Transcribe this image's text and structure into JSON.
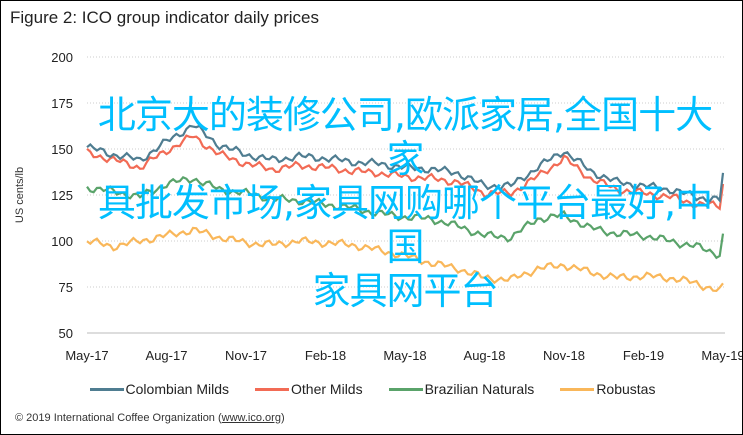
{
  "chart_data": {
    "type": "line",
    "title": "Figure 2: ICO group indicator daily prices",
    "xlabel": "",
    "ylabel": "US cents/lb",
    "ylim": [
      50,
      200
    ],
    "yticks": [
      "200",
      "175",
      "150",
      "125",
      "100",
      "75",
      "50"
    ],
    "ytick_values": [
      200,
      175,
      150,
      125,
      100,
      75,
      50
    ],
    "xtick_labels": [
      "May-17",
      "Aug-17",
      "Nov-17",
      "Feb-18",
      "May-18",
      "Aug-18",
      "Nov-18",
      "Feb-19",
      "May-19"
    ],
    "x": [
      "May-17",
      "Jun-17",
      "Jul-17",
      "Aug-17",
      "Sep-17",
      "Oct-17",
      "Nov-17",
      "Dec-17",
      "Jan-18",
      "Feb-18",
      "Mar-18",
      "Apr-18",
      "May-18",
      "Jun-18",
      "Jul-18",
      "Aug-18",
      "Sep-18",
      "Oct-18",
      "Nov-18",
      "Dec-18",
      "Jan-19",
      "Feb-19",
      "Mar-19",
      "Apr-19",
      "May-19",
      "end"
    ],
    "grid": true,
    "legend_position": "bottom",
    "series": [
      {
        "name": "Colombian Milds",
        "color": "#4f7d91",
        "values": [
          151,
          147,
          144,
          154,
          163,
          152,
          147,
          144,
          146,
          145,
          143,
          142,
          140,
          139,
          137,
          130,
          130,
          140,
          149,
          138,
          132,
          130,
          128,
          124,
          122,
          137
        ]
      },
      {
        "name": "Other Milds",
        "color": "#f26b55",
        "values": [
          148,
          144,
          140,
          149,
          157,
          147,
          142,
          139,
          141,
          140,
          138,
          137,
          135,
          134,
          132,
          126,
          126,
          135,
          145,
          134,
          128,
          126,
          124,
          120,
          119,
          131
        ]
      },
      {
        "name": "Brazilian Naturals",
        "color": "#5aa36a",
        "values": [
          129,
          127,
          124,
          131,
          134,
          128,
          126,
          123,
          122,
          120,
          118,
          115,
          113,
          112,
          108,
          103,
          102,
          112,
          114,
          107,
          104,
          103,
          100,
          97,
          92,
          104
        ]
      },
      {
        "name": "Robustas",
        "color": "#f9b75a",
        "values": [
          100,
          97,
          100,
          103,
          106,
          102,
          99,
          98,
          100,
          99,
          98,
          95,
          92,
          88,
          85,
          80,
          79,
          85,
          87,
          83,
          80,
          81,
          80,
          77,
          72,
          77
        ]
      }
    ]
  },
  "footer": {
    "text": "© 2019 International Coffee Organization (",
    "link": "www.ico.org",
    "close": ")"
  },
  "overlay_text": [
    "北京大的装修公司,欧派家居,全国十大家",
    "具批发市场,家具网购哪个平台最好,中国",
    "家具网平台"
  ]
}
